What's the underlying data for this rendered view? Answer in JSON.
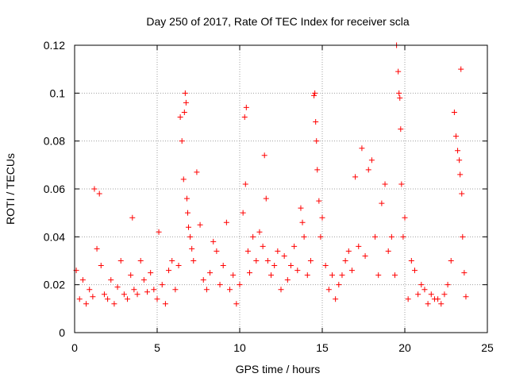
{
  "chart_data": {
    "type": "scatter",
    "title": "Day 250 of 2017, Rate Of TEC Index for receiver scla",
    "xlabel": "GPS time / hours",
    "ylabel": "ROTI / TECUs",
    "xlim": [
      0,
      25
    ],
    "ylim": [
      0,
      0.12
    ],
    "x_ticks": [
      0,
      5,
      10,
      15,
      20,
      25
    ],
    "y_ticks": [
      0,
      0.02,
      0.04,
      0.06,
      0.08,
      0.1,
      0.12
    ],
    "x_tick_labels": [
      "0",
      "5",
      "10",
      "15",
      "20",
      "25"
    ],
    "y_tick_labels": [
      "0",
      "0.02",
      "0.04",
      "0.06",
      "0.08",
      "0.1",
      "0.12"
    ],
    "grid": true,
    "marker": "plus",
    "color": "#ff0000",
    "series": [
      {
        "x": [
          0.1,
          0.3,
          0.5,
          0.7,
          0.9,
          1.1,
          1.2,
          1.35,
          1.5,
          1.6,
          1.8,
          2.0,
          2.2,
          2.4,
          2.6,
          2.8,
          3.0,
          3.2,
          3.4,
          3.5,
          3.6,
          3.8,
          4.0,
          4.2,
          4.4,
          4.6,
          4.8,
          5.0,
          5.1,
          5.3,
          5.5,
          5.7,
          5.9,
          6.1,
          6.3,
          6.4,
          6.5,
          6.6,
          6.65,
          6.7,
          6.75,
          6.8,
          6.85,
          6.9,
          7.0,
          7.1,
          7.2,
          7.4,
          7.6,
          7.8,
          8.0,
          8.2,
          8.4,
          8.6,
          8.8,
          9.0,
          9.2,
          9.4,
          9.6,
          9.8,
          10.0,
          10.2,
          10.3,
          10.35,
          10.4,
          10.5,
          10.6,
          10.8,
          11.0,
          11.2,
          11.4,
          11.5,
          11.6,
          11.7,
          11.9,
          12.1,
          12.3,
          12.5,
          12.7,
          12.9,
          13.1,
          13.3,
          13.5,
          13.7,
          13.8,
          13.9,
          14.1,
          14.3,
          14.5,
          14.55,
          14.6,
          14.65,
          14.7,
          14.8,
          14.9,
          15.0,
          15.2,
          15.4,
          15.6,
          15.8,
          16.0,
          16.2,
          16.4,
          16.6,
          16.8,
          17.0,
          17.2,
          17.4,
          17.6,
          17.8,
          18.0,
          18.2,
          18.4,
          18.6,
          18.8,
          19.0,
          19.2,
          19.4,
          19.5,
          19.6,
          19.65,
          19.7,
          19.75,
          19.8,
          19.9,
          20.0,
          20.2,
          20.4,
          20.6,
          20.8,
          21.0,
          21.2,
          21.4,
          21.6,
          21.8,
          22.0,
          22.2,
          22.4,
          22.6,
          22.8,
          23.0,
          23.1,
          23.2,
          23.3,
          23.35,
          23.4,
          23.45,
          23.5,
          23.6,
          23.7
        ],
        "y": [
          0.026,
          0.014,
          0.022,
          0.012,
          0.018,
          0.015,
          0.06,
          0.035,
          0.058,
          0.028,
          0.016,
          0.014,
          0.022,
          0.012,
          0.019,
          0.03,
          0.016,
          0.014,
          0.024,
          0.048,
          0.018,
          0.016,
          0.03,
          0.022,
          0.017,
          0.025,
          0.018,
          0.014,
          0.042,
          0.02,
          0.012,
          0.026,
          0.03,
          0.018,
          0.028,
          0.09,
          0.08,
          0.064,
          0.092,
          0.1,
          0.096,
          0.056,
          0.05,
          0.044,
          0.04,
          0.035,
          0.03,
          0.067,
          0.045,
          0.022,
          0.018,
          0.025,
          0.038,
          0.034,
          0.02,
          0.028,
          0.046,
          0.018,
          0.024,
          0.012,
          0.02,
          0.05,
          0.09,
          0.062,
          0.094,
          0.034,
          0.025,
          0.04,
          0.03,
          0.042,
          0.036,
          0.074,
          0.056,
          0.03,
          0.024,
          0.028,
          0.034,
          0.018,
          0.032,
          0.022,
          0.028,
          0.036,
          0.026,
          0.052,
          0.046,
          0.04,
          0.024,
          0.03,
          0.099,
          0.1,
          0.088,
          0.08,
          0.068,
          0.055,
          0.04,
          0.048,
          0.028,
          0.018,
          0.024,
          0.014,
          0.02,
          0.024,
          0.03,
          0.034,
          0.026,
          0.065,
          0.036,
          0.077,
          0.032,
          0.068,
          0.072,
          0.04,
          0.024,
          0.054,
          0.062,
          0.034,
          0.04,
          0.024,
          0.12,
          0.109,
          0.1,
          0.098,
          0.085,
          0.062,
          0.04,
          0.048,
          0.014,
          0.03,
          0.026,
          0.016,
          0.02,
          0.018,
          0.012,
          0.016,
          0.014,
          0.014,
          0.012,
          0.016,
          0.02,
          0.03,
          0.092,
          0.082,
          0.076,
          0.072,
          0.066,
          0.11,
          0.058,
          0.04,
          0.025,
          0.015
        ]
      }
    ]
  }
}
